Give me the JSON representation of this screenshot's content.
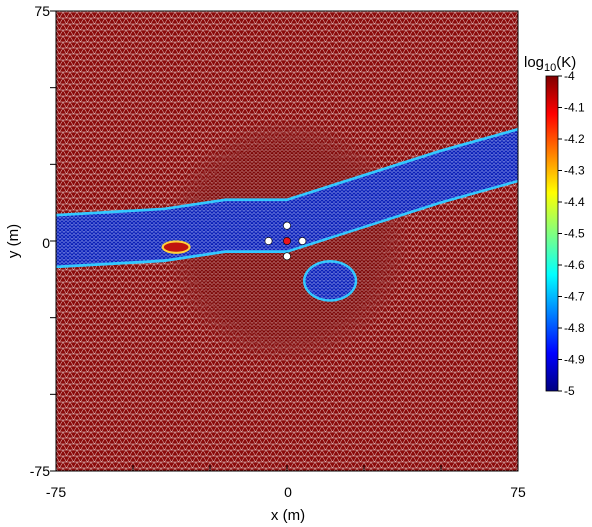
{
  "chart_data": {
    "type": "heatmap",
    "title": "",
    "xlabel": "x (m)",
    "ylabel": "y (m)",
    "xlim": [
      -75,
      75
    ],
    "ylim": [
      -75,
      75
    ],
    "x_ticks": [
      -75,
      -50,
      -25,
      0,
      25,
      50,
      75
    ],
    "y_ticks": [
      -75,
      -50,
      -25,
      0,
      25,
      50,
      75
    ],
    "x_tick_labels": [
      "-75",
      "0",
      "75"
    ],
    "y_tick_labels": [
      "-75",
      "0",
      "75"
    ],
    "grid": false,
    "colorbar": {
      "label": "log10(K)",
      "label_base": "log",
      "label_sub": "10",
      "label_arg": "(K)",
      "range": [
        -5,
        -4
      ],
      "colormap": "jet",
      "ticks": [
        "-4",
        "-4.1",
        "-4.2",
        "-4.3",
        "-4.4",
        "-4.5",
        "-4.6",
        "-4.7",
        "-4.8",
        "-4.9",
        "-5"
      ]
    },
    "field": {
      "background_value": -4,
      "channel_value": -5,
      "channel_centerline": [
        {
          "x": -75,
          "y": 0
        },
        {
          "x": -40,
          "y": 2
        },
        {
          "x": -20,
          "y": 5
        },
        {
          "x": 0,
          "y": 5
        },
        {
          "x": 25,
          "y": 13
        },
        {
          "x": 50,
          "y": 21
        },
        {
          "x": 75,
          "y": 28
        }
      ],
      "channel_half_width": 8,
      "low_k_blob": {
        "cx": 14,
        "cy": -13,
        "rx": 8,
        "ry": 6,
        "value": -5
      },
      "small_lens": {
        "cx": -36,
        "cy": -2,
        "rx": 4,
        "ry": 1.5,
        "value": -4
      },
      "refined_region": {
        "cx": 0,
        "cy": 0,
        "radius": 40
      }
    },
    "wells": [
      {
        "x": 0,
        "y": 5,
        "role": "observation"
      },
      {
        "x": -6,
        "y": 0,
        "role": "observation"
      },
      {
        "x": 5,
        "y": 0,
        "role": "observation"
      },
      {
        "x": 0,
        "y": -5,
        "role": "observation"
      },
      {
        "x": 0,
        "y": 0,
        "role": "pumping"
      }
    ],
    "colors": {
      "background": "#8b0b0b",
      "mesh_line": "#f2dcdc",
      "channel": "#0a1fb8",
      "channel_edge": "#33c8ff",
      "pumping_well": "#e8141c",
      "observation_well": "#ffffff"
    }
  }
}
